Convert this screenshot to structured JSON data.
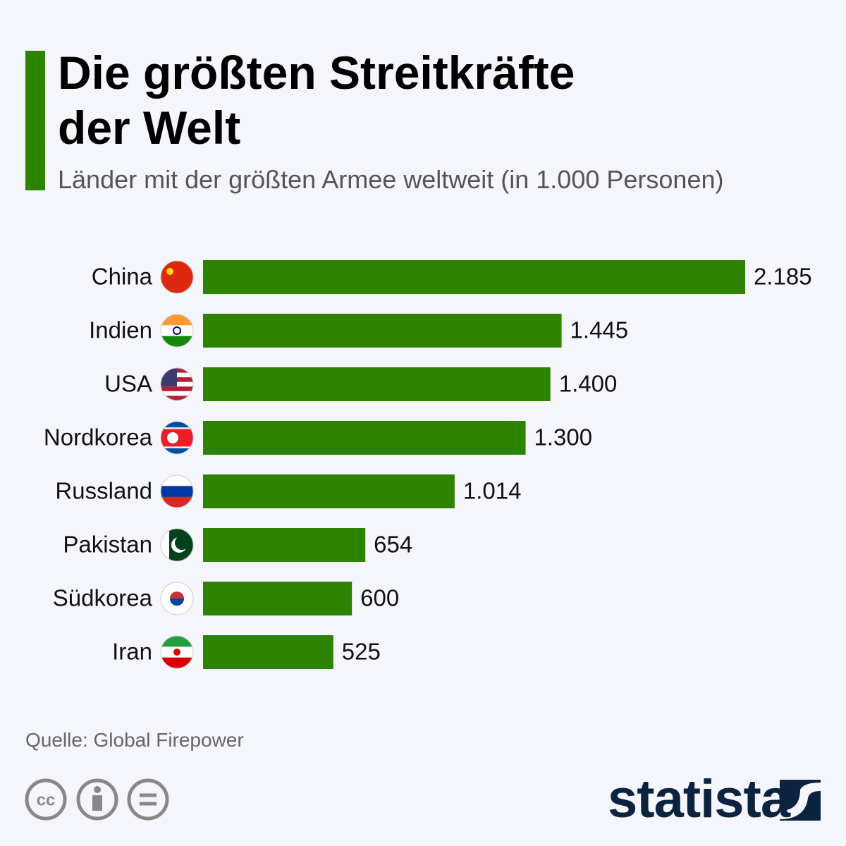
{
  "chart_data": {
    "type": "bar",
    "title": "Die größten Streitkräfte der Welt",
    "subtitle": "Länder mit der größten Armee weltweit (in 1.000 Personen)",
    "categories": [
      "China",
      "Indien",
      "USA",
      "Nordkorea",
      "Russland",
      "Pakistan",
      "Südkorea",
      "Iran"
    ],
    "values": [
      2185,
      1445,
      1400,
      1300,
      1014,
      654,
      600,
      525
    ],
    "value_labels": [
      "2.185",
      "1.445",
      "1.400",
      "1.300",
      "1.014",
      "654",
      "600",
      "525"
    ],
    "color": "#2d8200",
    "source": "Quelle: Global Firepower",
    "brand": "statista"
  }
}
